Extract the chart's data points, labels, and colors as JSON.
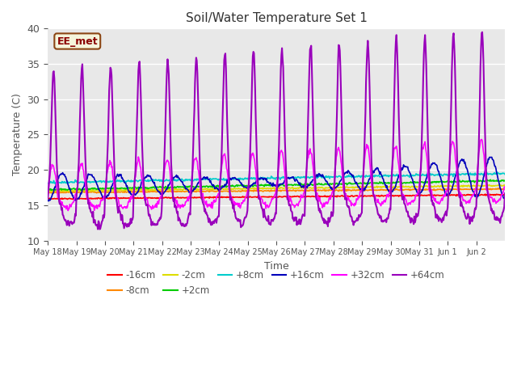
{
  "title": "Soil/Water Temperature Set 1",
  "xlabel": "Time",
  "ylabel": "Temperature (C)",
  "ylim": [
    10,
    40
  ],
  "xlim": [
    0,
    16
  ],
  "background_color": "#ffffff",
  "plot_bg_color": "#e8e8e8",
  "grid_color": "#ffffff",
  "watermark": "EE_met",
  "xtick_labels": [
    "May 18",
    "May 19",
    "May 20",
    "May 21",
    "May 22",
    "May 23",
    "May 24",
    "May 25",
    "May 26",
    "May 27",
    "May 28",
    "May 29",
    "May 30",
    "May 31",
    "Jun 1",
    "Jun 2"
  ],
  "series_order": [
    "-16cm",
    "-8cm",
    "-2cm",
    "+2cm",
    "+8cm",
    "+16cm",
    "+32cm",
    "+64cm"
  ],
  "series": {
    "-16cm": {
      "color": "#ff0000",
      "lw": 1.2
    },
    "-8cm": {
      "color": "#ff8800",
      "lw": 1.2
    },
    "-2cm": {
      "color": "#dddd00",
      "lw": 1.2
    },
    "+2cm": {
      "color": "#00cc00",
      "lw": 1.2
    },
    "+8cm": {
      "color": "#00cccc",
      "lw": 1.2
    },
    "+16cm": {
      "color": "#0000bb",
      "lw": 1.2
    },
    "+32cm": {
      "color": "#ff00ff",
      "lw": 1.2
    },
    "+64cm": {
      "color": "#9900bb",
      "lw": 1.5
    }
  },
  "legend_ncol": 6,
  "legend_rows": [
    [
      "-16cm",
      "-8cm",
      "-2cm",
      "+2cm",
      "+8cm",
      "+16cm"
    ],
    [
      "+32cm",
      "+64cm"
    ]
  ]
}
